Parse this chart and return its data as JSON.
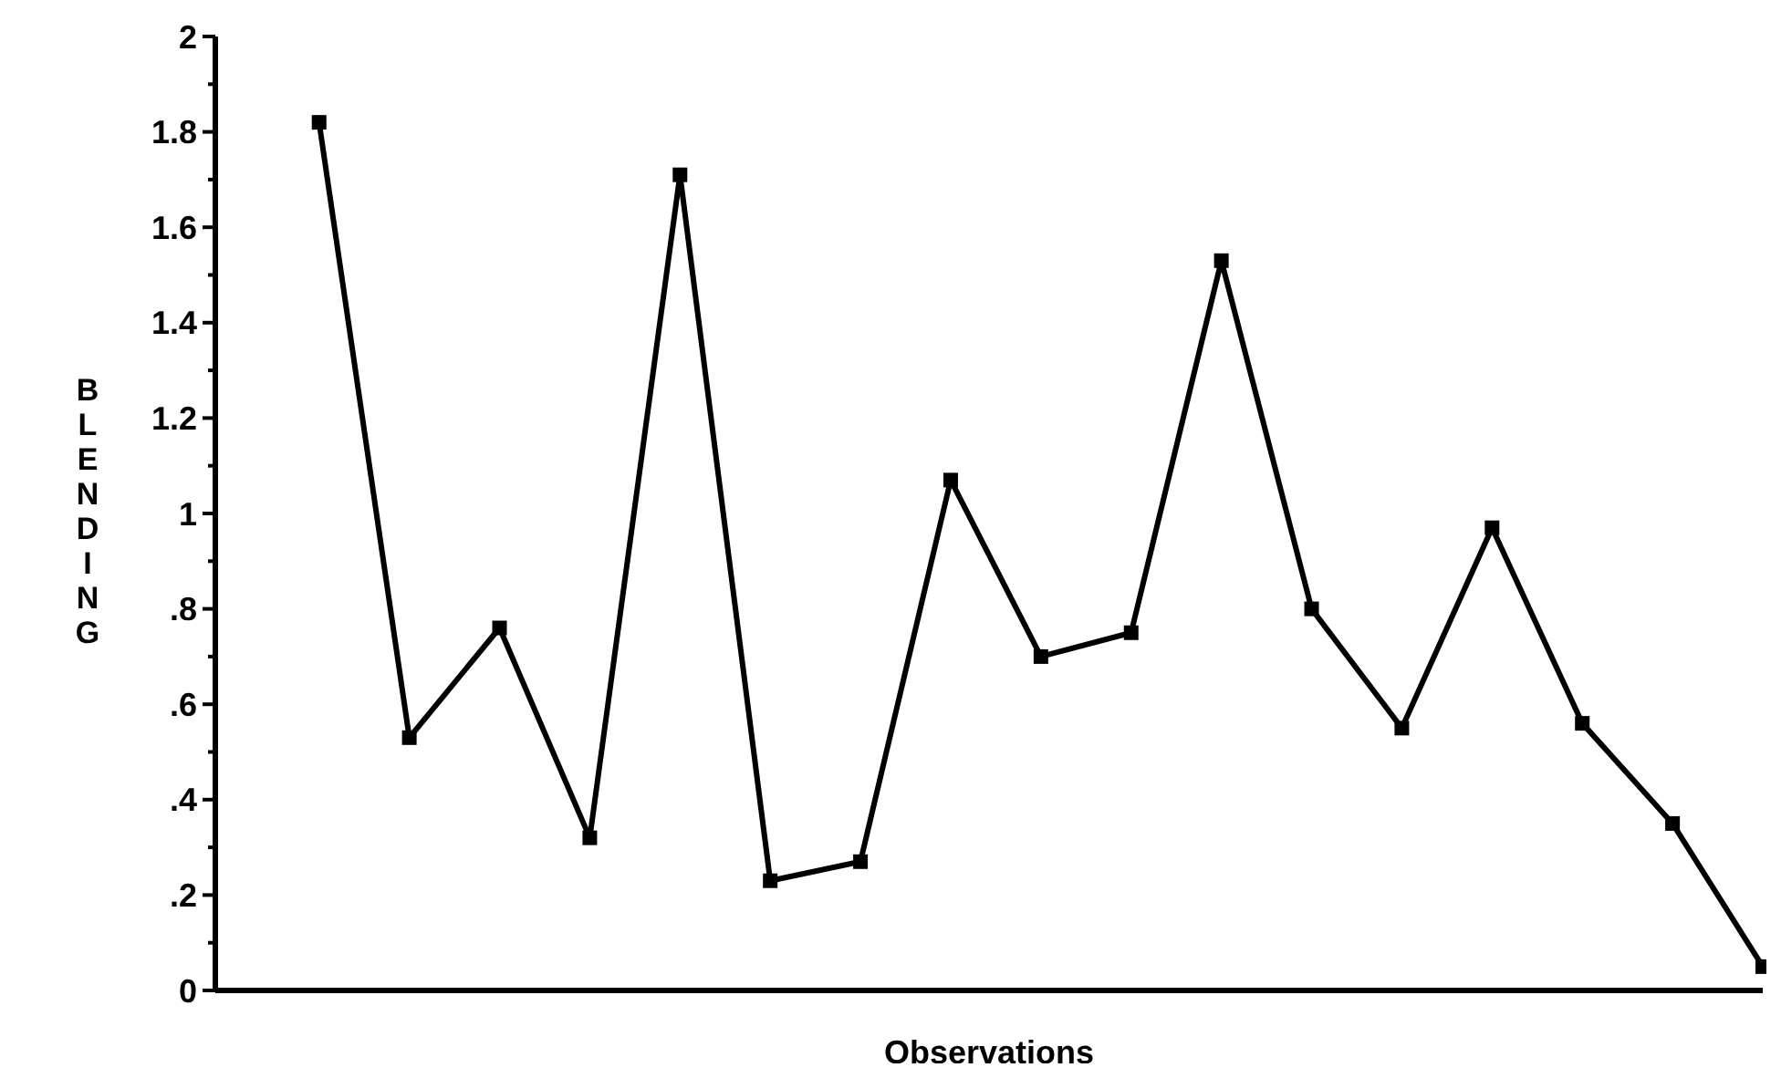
{
  "chart_data": {
    "type": "line",
    "xlabel": "Observations",
    "ylabel": "BLENDING",
    "categories": [
      null,
      null,
      null,
      null,
      null,
      null,
      null,
      null,
      null,
      null,
      null,
      null,
      null,
      null,
      null,
      null,
      null
    ],
    "series": [
      {
        "color": "#000000",
        "values": [
          1.82,
          0.53,
          0.76,
          0.32,
          1.71,
          0.23,
          0.27,
          1.07,
          0.7,
          0.75,
          1.53,
          0.8,
          0.55,
          0.97,
          0.56,
          0.35,
          0.05
        ]
      }
    ],
    "ylim": [
      0,
      2
    ],
    "yticks": [
      0,
      {
        "value": 0.1,
        "label": null
      },
      {
        "value": 0.2,
        "label": ".2"
      },
      {
        "value": 0.3,
        "label": null
      },
      {
        "value": 0.4,
        "label": ".4"
      },
      {
        "value": 0.5,
        "label": null
      },
      {
        "value": 0.6,
        "label": ".6"
      },
      {
        "value": 0.7,
        "label": null
      },
      {
        "value": 0.8,
        "label": ".8"
      },
      {
        "value": 0.9,
        "label": null
      },
      1,
      {
        "value": 1.1,
        "label": null
      },
      1.2,
      {
        "value": 1.3,
        "label": null
      },
      1.4,
      {
        "value": 1.5,
        "label": null
      },
      1.6,
      {
        "value": 1.7,
        "label": null
      },
      1.8,
      {
        "value": 1.9,
        "label": null
      },
      2
    ],
    "marker": "square",
    "line_style": "solid",
    "grid": false
  }
}
